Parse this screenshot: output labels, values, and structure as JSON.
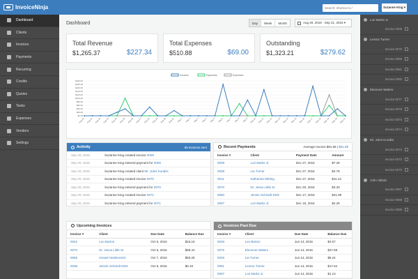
{
  "app": {
    "brand": "InvoiceNinja",
    "search_placeholder": "Search: shortcut is /",
    "user": "Suzanne King ▾"
  },
  "sidebar": [
    {
      "label": "Dashboard",
      "icon": "tachometer-icon",
      "active": true
    },
    {
      "label": "Clients",
      "icon": "users-icon"
    },
    {
      "label": "Invoices",
      "icon": "file-icon"
    },
    {
      "label": "Payments",
      "icon": "credit-card-icon"
    },
    {
      "label": "Recurring",
      "icon": "repeat-icon"
    },
    {
      "label": "Credits",
      "icon": "credit-icon"
    },
    {
      "label": "Quotes",
      "icon": "quote-icon"
    },
    {
      "label": "Tasks",
      "icon": "clock-icon"
    },
    {
      "label": "Expenses",
      "icon": "expense-icon"
    },
    {
      "label": "Vendors",
      "icon": "building-icon"
    },
    {
      "label": "Settings",
      "icon": "gear-icon"
    }
  ],
  "header": {
    "title": "Dashboard",
    "range_buttons": [
      "Day",
      "Week",
      "Month"
    ],
    "date_range": "Aug 20, 2016 - Sep 21, 2016 ▾"
  },
  "stats": [
    {
      "label": "Total Revenue",
      "value": "$1,265.37",
      "secondary": "$227.34"
    },
    {
      "label": "Total Expenses",
      "value": "$510.88",
      "secondary": "$69.00"
    },
    {
      "label": "Outstanding",
      "value": "$1,323.21",
      "secondary": "$279.62"
    }
  ],
  "chart_data": {
    "type": "line",
    "categories": [
      "Aug 20",
      "Aug 21",
      "Aug 22",
      "Aug 23",
      "Aug 24",
      "Aug 25",
      "Aug 26",
      "Aug 27",
      "Aug 28",
      "Aug 29",
      "Aug 30",
      "Aug 31",
      "Sep 1",
      "Sep 2",
      "Sep 3",
      "Sep 4",
      "Sep 5",
      "Sep 6",
      "Sep 7",
      "Sep 8",
      "Sep 9",
      "Sep 10",
      "Sep 11",
      "Sep 12",
      "Sep 13",
      "Sep 14",
      "Sep 15",
      "Sep 16",
      "Sep 17",
      "Sep 18",
      "Sep 19",
      "Sep 20",
      "Sep 21"
    ],
    "series": [
      {
        "name": "Invoices",
        "color": "#3b7dbd",
        "values": [
          0,
          0,
          0,
          0,
          20,
          40,
          0,
          0,
          50,
          0,
          0,
          30,
          0,
          0,
          0,
          0,
          0,
          180,
          0,
          0,
          90,
          0,
          150,
          0,
          0,
          0,
          0,
          0,
          170,
          0,
          0,
          40,
          0
        ]
      },
      {
        "name": "Payments",
        "color": "#2ecc71",
        "values": [
          0,
          0,
          0,
          0,
          0,
          100,
          0,
          0,
          0,
          0,
          0,
          0,
          0,
          0,
          0,
          0,
          0,
          0,
          0,
          70,
          0,
          0,
          0,
          0,
          0,
          0,
          0,
          0,
          0,
          0,
          60,
          0,
          0
        ]
      },
      {
        "name": "Expenses",
        "color": "#999999",
        "values": [
          0,
          0,
          0,
          0,
          0,
          0,
          0,
          0,
          0,
          0,
          0,
          0,
          0,
          0,
          0,
          0,
          0,
          0,
          0,
          0,
          0,
          0,
          0,
          0,
          0,
          0,
          0,
          0,
          0,
          0,
          120,
          0,
          0
        ]
      }
    ],
    "ylim": [
      0,
      200
    ],
    "yticks": [
      "$0.00",
      "$20.00",
      "$40.00",
      "$60.00",
      "$80.00",
      "$100.00",
      "$120.00",
      "$140.00",
      "$160.00",
      "$180.00",
      "$200.00"
    ],
    "legend": "top-center"
  },
  "activity": {
    "title": "Activity",
    "badge": "86 invoices sent",
    "rows": [
      {
        "date": "Sep 20, 2016",
        "text": "Suzanne King created invoice",
        "link": "0009"
      },
      {
        "date": "Sep 20, 2016",
        "text": "Suzanne King entered payment for",
        "link": "0009"
      },
      {
        "date": "Sep 20, 2016",
        "text": "Suzanne King created client",
        "link": "Mr. Jules Kurakis"
      },
      {
        "date": "Sep 20, 2016",
        "text": "Suzanne King created invoice",
        "link": "0070"
      },
      {
        "date": "Sep 20, 2016",
        "text": "Suzanne King entered payment for",
        "link": "0070"
      },
      {
        "date": "Sep 20, 2016",
        "text": "Suzanne King created invoice",
        "link": "0071"
      },
      {
        "date": "Sep 20, 2016",
        "text": "Suzanne King entered payment for",
        "link": "0071"
      }
    ]
  },
  "payments": {
    "title": "Recent Payments",
    "avg_label": "Average Invoice $91.96",
    "avg_link": "$51.89",
    "columns": [
      "Invoice #",
      "Client",
      "Payment Date",
      "Amount"
    ],
    "rows": [
      [
        "0009",
        "Lori Marks Jr.",
        "Dec 27, 2016",
        "$7.28"
      ],
      [
        "0038",
        "Lia Turner",
        "Dec 27, 2016",
        "$4.78"
      ],
      [
        "0011",
        "Katharina Witting",
        "Dec 27, 2016",
        "$11.13"
      ],
      [
        "0070",
        "Dr. Jesus Little Sr.",
        "Dec 20, 2016",
        "$3.33"
      ],
      [
        "0050",
        "Jennie Schmidt DDS",
        "Dec 17, 2016",
        "$41.99"
      ],
      [
        "0007",
        "Lori Marks Jr.",
        "Dec 15, 2016",
        "$2.29"
      ]
    ]
  },
  "upcoming": {
    "title": "Upcoming Invoices",
    "columns": [
      "Invoice #",
      "Client",
      "Due Date",
      "Balance Due"
    ],
    "rows": [
      [
        "0042",
        "Leo Barton",
        "Oct 5, 2016",
        "$16.15"
      ],
      [
        "0070",
        "Dr. Jesus Little Sr.",
        "Oct 6, 2016",
        "$69.44"
      ],
      [
        "0065",
        "Ismael Heidenreich",
        "Oct 7, 2016",
        "$50.29"
      ],
      [
        "0038",
        "Jennie Schmidt DDS",
        "Oct 8, 2016",
        "$0.19"
      ]
    ]
  },
  "pastdue": {
    "title": "Invoices Past Due",
    "columns": [
      "Invoice #",
      "Client",
      "Due Date",
      "Balance Due"
    ],
    "rows": [
      [
        "0048",
        "Leo Barton",
        "Jun 14, 2016",
        "$4.07"
      ],
      [
        "0076",
        "Eleonore Waters",
        "Jun 14, 2016",
        "$37.69"
      ],
      [
        "0049",
        "Lia Turner",
        "Jun 14, 2016",
        "$9.24"
      ],
      [
        "0081",
        "Leonor Turner",
        "Jun 14, 2016",
        "$17.64"
      ],
      [
        "0007",
        "Lori Marks Jr.",
        "Jun 14, 2016",
        "$1.13"
      ]
    ]
  },
  "rightbar": [
    {
      "client": "Lori Marks Jr.",
      "invoices": [
        "Invoice 0009"
      ]
    },
    {
      "client": "Leonor Turner",
      "invoices": [
        "Invoice 0075",
        "Invoice 0080",
        "Invoice 0081",
        "Invoice 0082"
      ]
    },
    {
      "client": "Eleonore Waters",
      "invoices": [
        "Invoice 0077",
        "Invoice 0076",
        "Invoice 0073",
        "Invoice 0074"
      ]
    },
    {
      "client": "Mr. Jules Kurakis",
      "invoices": [
        "Invoice 0072",
        "Invoice 0073",
        "Invoice 0070"
      ]
    },
    {
      "client": "John Abbott",
      "invoices": [
        "Invoice 0087",
        "Invoice 0088",
        "Invoice 0089"
      ]
    }
  ]
}
